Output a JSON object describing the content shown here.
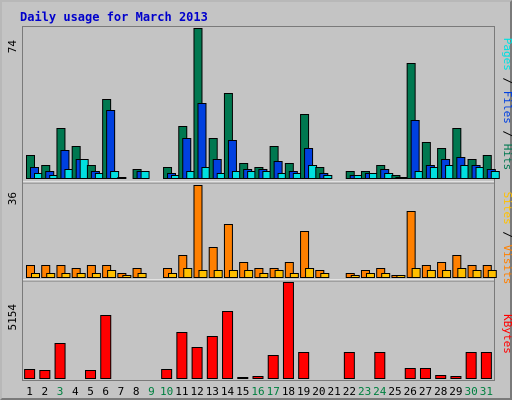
{
  "chart_data": {
    "type": "bar",
    "title": "Daily usage for March 2013",
    "categories": [
      "1",
      "2",
      "3",
      "4",
      "5",
      "6",
      "7",
      "8",
      "9",
      "10",
      "11",
      "12",
      "13",
      "14",
      "15",
      "16",
      "17",
      "18",
      "19",
      "20",
      "21",
      "22",
      "23",
      "24",
      "25",
      "26",
      "27",
      "28",
      "29",
      "30",
      "31"
    ],
    "weekend_days": [
      "3",
      "9",
      "10",
      "16",
      "17",
      "23",
      "24",
      "30",
      "31"
    ],
    "panels": [
      {
        "name": "hits-files-pages",
        "ymax_label": "74",
        "ylim": [
          0,
          74
        ],
        "legend": [
          "Pages",
          "Files",
          "Hits"
        ],
        "series": [
          {
            "name": "Hits",
            "color": "#007850",
            "values": [
              12,
              7,
              25,
              16,
              7,
              39,
              1,
              5,
              0,
              6,
              26,
              74,
              20,
              42,
              8,
              6,
              16,
              8,
              32,
              6,
              0,
              4,
              4,
              7,
              2,
              57,
              18,
              15,
              25,
              10,
              12
            ]
          },
          {
            "name": "Files",
            "color": "#0040e0",
            "values": [
              6,
              4,
              14,
              10,
              4,
              34,
              0,
              4,
              0,
              3,
              20,
              37,
              10,
              19,
              5,
              5,
              9,
              4,
              15,
              3,
              0,
              2,
              3,
              5,
              1,
              29,
              7,
              10,
              11,
              7,
              5
            ]
          },
          {
            "name": "Pages",
            "color": "#00e0e0",
            "values": [
              3,
              2,
              5,
              10,
              3,
              4,
              0,
              4,
              0,
              2,
              4,
              6,
              3,
              4,
              4,
              4,
              3,
              3,
              7,
              2,
              0,
              2,
              3,
              3,
              1,
              4,
              6,
              7,
              7,
              6,
              4
            ]
          }
        ]
      },
      {
        "name": "visits-sites",
        "ymax_label": "36",
        "ylim": [
          0,
          36
        ],
        "legend": [
          "Sites",
          "Visits"
        ],
        "series": [
          {
            "name": "Visits",
            "color": "#ff8000",
            "values": [
              5,
              5,
              5,
              4,
              5,
              5,
              2,
              4,
              0,
              4,
              9,
              36,
              12,
              21,
              6,
              4,
              4,
              6,
              18,
              3,
              0,
              2,
              3,
              4,
              1,
              26,
              5,
              6,
              9,
              5,
              5
            ]
          },
          {
            "name": "Sites",
            "color": "#ffc000",
            "values": [
              2,
              2,
              2,
              2,
              2,
              3,
              1,
              2,
              0,
              2,
              4,
              3,
              3,
              3,
              3,
              2,
              3,
              2,
              4,
              2,
              0,
              1,
              2,
              2,
              1,
              4,
              3,
              3,
              4,
              3,
              3
            ]
          }
        ]
      },
      {
        "name": "kbytes",
        "ymax_label": "5154",
        "ylim": [
          0,
          5154
        ],
        "legend": [
          "KBytes"
        ],
        "series": [
          {
            "name": "KBytes",
            "color": "#ff0000",
            "values": [
              530,
              480,
              1900,
              50,
              480,
              3400,
              50,
              50,
              0,
              530,
              2500,
              1700,
              2300,
              3600,
              110,
              150,
              1250,
              5154,
              1450,
              0,
              0,
              1450,
              50,
              1450,
              50,
              560,
              600,
              200,
              170,
              1450,
              1450
            ]
          }
        ]
      }
    ]
  },
  "colors": {
    "panel_bg": "#c4c4c4",
    "plot_bg": "#c4c4c4",
    "title": "#0000cc",
    "weekday_label": "#000000",
    "weekend_label": "#008040",
    "label_sep": "#000000",
    "bar_outline": "#000000"
  }
}
